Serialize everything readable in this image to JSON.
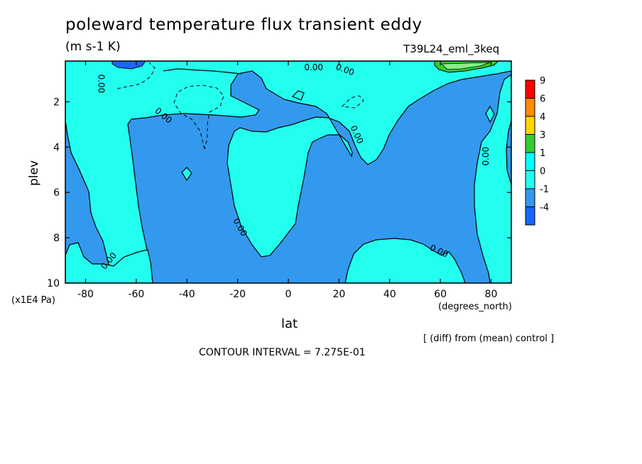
{
  "chart_data": {
    "type": "heatmap",
    "title": "poleward temperature flux transient eddy",
    "units": "(m s-1 K)",
    "run_label": "T39L24_eml_3keq",
    "xlabel": "lat",
    "x_units": "(degrees_north)",
    "ylabel": "plev",
    "y_units": "(x1E4 Pa)",
    "xlim": [
      -88,
      88
    ],
    "ylim": [
      10,
      0.2
    ],
    "x_ticks": [
      "-80",
      "-60",
      "-40",
      "-20",
      "0",
      "20",
      "40",
      "60",
      "80"
    ],
    "x_tick_values": [
      -80,
      -60,
      -40,
      -20,
      0,
      20,
      40,
      60,
      80
    ],
    "y_ticks": [
      "2",
      "4",
      "6",
      "8",
      "10"
    ],
    "y_tick_values": [
      2,
      4,
      6,
      8,
      10
    ],
    "colorbar": {
      "labels": [
        "9",
        "6",
        "4",
        "3",
        "1",
        "0",
        "-1",
        "-4"
      ],
      "colors": [
        "#ff0000",
        "#ff8c00",
        "#ffd400",
        "#33cc33",
        "#00ffff",
        "#22ffee",
        "#3399ee",
        "#1a66ff"
      ]
    },
    "fill_colors": {
      "neg_strong": "#1a66ff",
      "neg": "#3399ee",
      "pos": "#22ffee",
      "pos_mid": "#55dd55",
      "pos_strong": "#33cc33"
    },
    "contour_labels": [
      "0.00",
      "0.00",
      "0.00",
      "0.00",
      "0.00",
      "0.00",
      "0.00",
      "0.00",
      "0.00"
    ],
    "annotation_diff": "[ (diff) from (mean) control ]",
    "contour_interval": "CONTOUR INTERVAL = 7.275E-01"
  }
}
